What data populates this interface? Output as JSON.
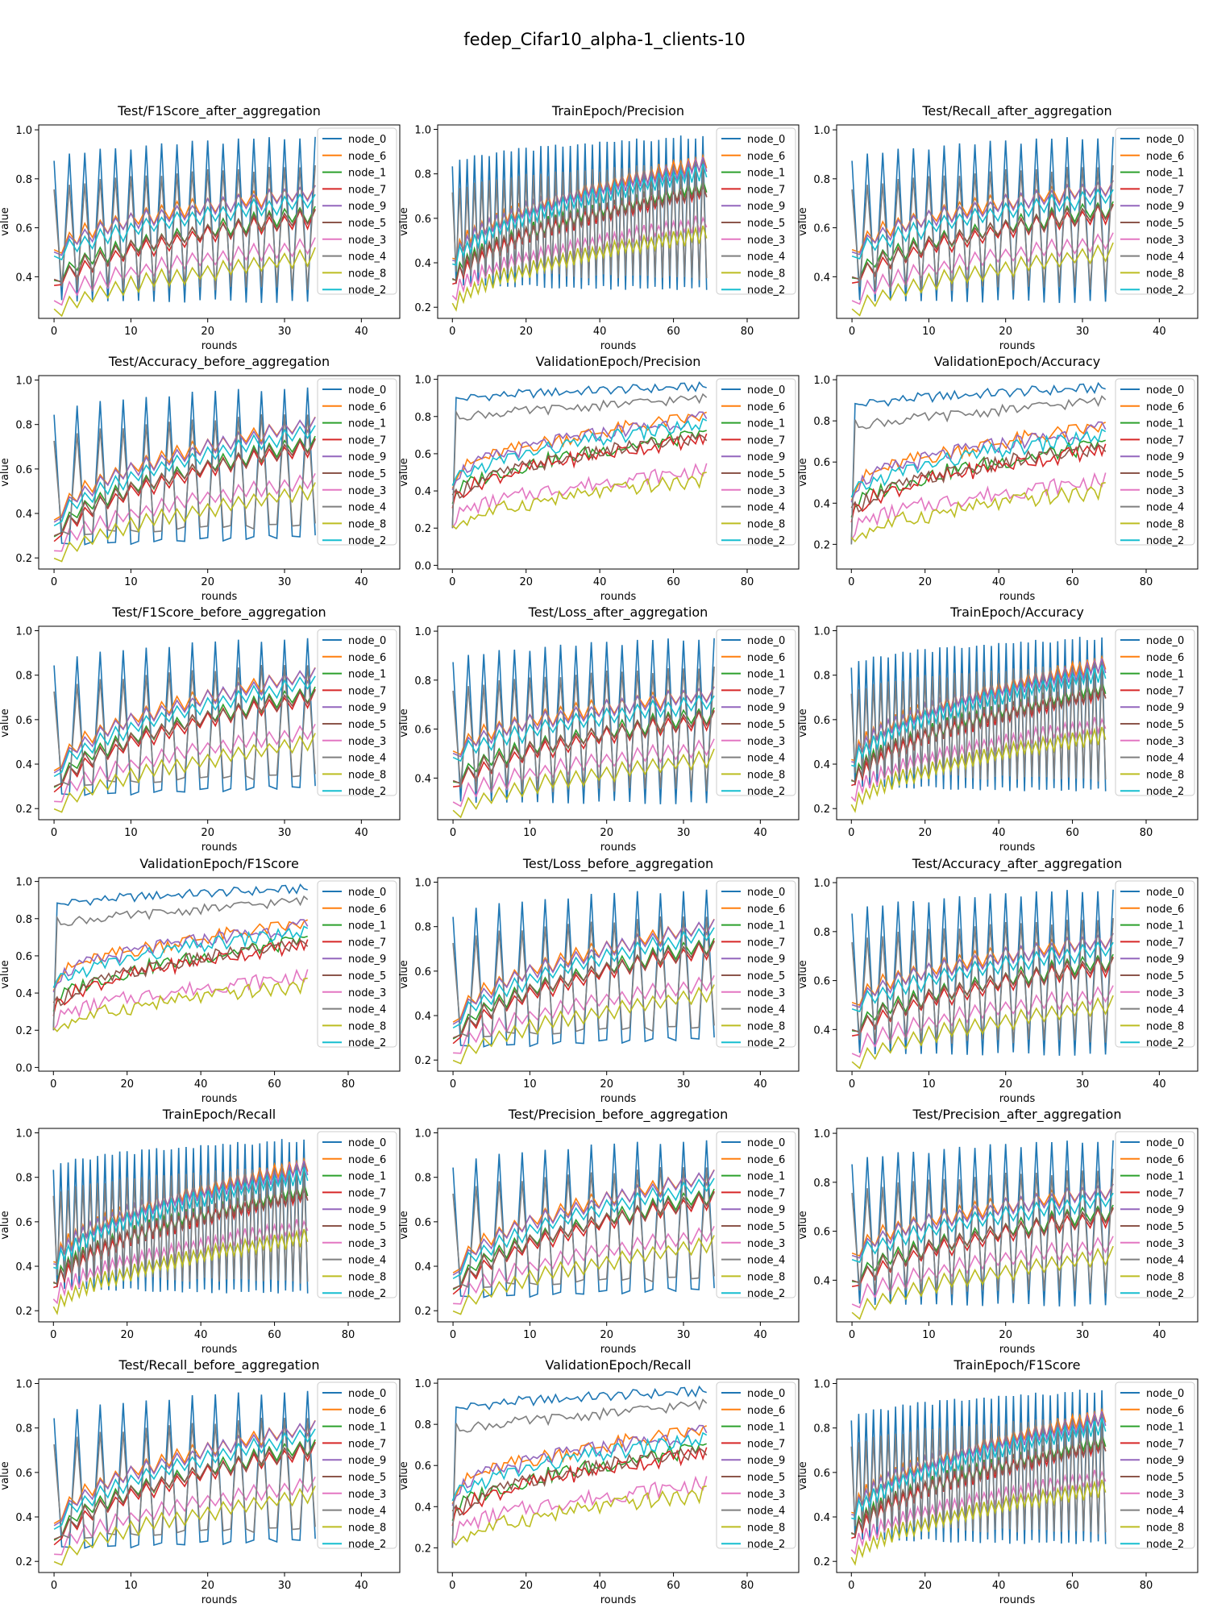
{
  "figure_title": "fedep_Cifar10_alpha-1_clients-10",
  "legend": [
    "node_0",
    "node_6",
    "node_1",
    "node_7",
    "node_9",
    "node_5",
    "node_3",
    "node_4",
    "node_8",
    "node_2"
  ],
  "colors": {
    "node_0": "#1f77b4",
    "node_6": "#ff7f0e",
    "node_1": "#2ca02c",
    "node_7": "#d62728",
    "node_9": "#9467bd",
    "node_5": "#8c564b",
    "node_3": "#e377c2",
    "node_4": "#7f7f7f",
    "node_8": "#bcbd22",
    "node_2": "#17becf"
  },
  "chart_data": [
    {
      "type": "line",
      "title": "Test/F1Score_after_aggregation",
      "xlabel": "rounds",
      "ylabel": "value",
      "xlim": [
        -2,
        45
      ],
      "ylim": [
        0.23,
        1.02
      ],
      "xticks": [
        0,
        10,
        20,
        30,
        40
      ],
      "yticks": [
        0.4,
        0.6,
        0.8,
        1.0
      ],
      "n": 35,
      "pattern": "saw2",
      "start": {
        "hi": 0.88,
        "lo": 0.3
      },
      "end": {
        "hi": 0.97,
        "lo": 0.3
      },
      "groups": {
        "b": [
          0.44,
          0.7
        ],
        "m": [
          0.36,
          0.66
        ],
        "l": [
          0.25,
          0.5
        ]
      }
    },
    {
      "type": "line",
      "title": "TrainEpoch/Precision",
      "xlabel": "rounds",
      "ylabel": "value",
      "xlim": [
        -4,
        94
      ],
      "ylim": [
        0.15,
        1.02
      ],
      "xticks": [
        0,
        20,
        40,
        60,
        80
      ],
      "yticks": [
        0.2,
        0.4,
        0.6,
        0.8,
        1.0
      ],
      "n": 70,
      "pattern": "saw2",
      "start": {
        "hi": 0.84,
        "lo": 0.3
      },
      "end": {
        "hi": 0.97,
        "lo": 0.28
      },
      "groups": {
        "b": [
          0.35,
          0.8
        ],
        "m": [
          0.3,
          0.74
        ],
        "l": [
          0.2,
          0.55
        ]
      }
    },
    {
      "type": "line",
      "title": "Test/Recall_after_aggregation",
      "xlabel": "rounds",
      "ylabel": "value",
      "xlim": [
        -2,
        45
      ],
      "ylim": [
        0.23,
        1.02
      ],
      "xticks": [
        0,
        10,
        20,
        30,
        40
      ],
      "yticks": [
        0.4,
        0.6,
        0.8,
        1.0
      ],
      "n": 35,
      "pattern": "saw2",
      "start": {
        "hi": 0.88,
        "lo": 0.3
      },
      "end": {
        "hi": 0.97,
        "lo": 0.3
      },
      "groups": {
        "b": [
          0.44,
          0.72
        ],
        "m": [
          0.37,
          0.68
        ],
        "l": [
          0.25,
          0.52
        ]
      }
    },
    {
      "type": "line",
      "title": "Test/Accuracy_before_aggregation",
      "xlabel": "rounds",
      "ylabel": "value",
      "xlim": [
        -2,
        45
      ],
      "ylim": [
        0.15,
        1.02
      ],
      "xticks": [
        0,
        10,
        20,
        30,
        40
      ],
      "yticks": [
        0.2,
        0.4,
        0.6,
        0.8,
        1.0
      ],
      "n": 35,
      "pattern": "saw3",
      "start": {
        "hi": 0.85,
        "lo": 0.26
      },
      "end": {
        "hi": 0.97,
        "lo": 0.3
      },
      "groups": {
        "b": [
          0.3,
          0.76
        ],
        "m": [
          0.27,
          0.72
        ],
        "l": [
          0.18,
          0.52
        ]
      }
    },
    {
      "type": "line",
      "title": "ValidationEpoch/Precision",
      "xlabel": "rounds",
      "ylabel": "value",
      "xlim": [
        -4,
        94
      ],
      "ylim": [
        -0.02,
        1.02
      ],
      "xticks": [
        0,
        20,
        40,
        60,
        80
      ],
      "yticks": [
        0.0,
        0.2,
        0.4,
        0.6,
        0.8,
        1.0
      ],
      "n": 70,
      "pattern": "noisy",
      "start": {
        "hi": 0.88,
        "lo": 0.8
      },
      "end": {
        "hi": 0.96,
        "lo": 0.9
      },
      "groups": {
        "b": [
          0.4,
          0.75
        ],
        "m": [
          0.35,
          0.7
        ],
        "l": [
          0.2,
          0.48
        ]
      }
    },
    {
      "type": "line",
      "title": "ValidationEpoch/Accuracy",
      "xlabel": "rounds",
      "ylabel": "value",
      "xlim": [
        -4,
        94
      ],
      "ylim": [
        0.08,
        1.02
      ],
      "xticks": [
        0,
        20,
        40,
        60,
        80
      ],
      "yticks": [
        0.2,
        0.4,
        0.6,
        0.8,
        1.0
      ],
      "n": 70,
      "pattern": "noisy",
      "start": {
        "hi": 0.86,
        "lo": 0.78
      },
      "end": {
        "hi": 0.96,
        "lo": 0.9
      },
      "groups": {
        "b": [
          0.4,
          0.72
        ],
        "m": [
          0.35,
          0.68
        ],
        "l": [
          0.22,
          0.48
        ]
      }
    },
    {
      "type": "line",
      "title": "Test/F1Score_before_aggregation",
      "xlabel": "rounds",
      "ylabel": "value",
      "xlim": [
        -2,
        45
      ],
      "ylim": [
        0.15,
        1.02
      ],
      "xticks": [
        0,
        10,
        20,
        30,
        40
      ],
      "yticks": [
        0.2,
        0.4,
        0.6,
        0.8,
        1.0
      ],
      "n": 35,
      "pattern": "saw3",
      "start": {
        "hi": 0.85,
        "lo": 0.26
      },
      "end": {
        "hi": 0.97,
        "lo": 0.3
      },
      "groups": {
        "b": [
          0.3,
          0.76
        ],
        "m": [
          0.27,
          0.72
        ],
        "l": [
          0.18,
          0.52
        ]
      }
    },
    {
      "type": "line",
      "title": "Test/Loss_after_aggregation",
      "xlabel": "rounds",
      "ylabel": "value",
      "xlim": [
        -2,
        45
      ],
      "ylim": [
        0.23,
        1.02
      ],
      "xticks": [
        0,
        10,
        20,
        30,
        40
      ],
      "yticks": [
        0.4,
        0.6,
        0.8,
        1.0
      ],
      "n": 35,
      "pattern": "saw2",
      "start": {
        "hi": 0.88,
        "lo": 0.3
      },
      "end": {
        "hi": 0.97,
        "lo": 0.3
      },
      "groups": {
        "b": [
          0.44,
          0.7
        ],
        "m": [
          0.36,
          0.66
        ],
        "l": [
          0.25,
          0.5
        ]
      }
    },
    {
      "type": "line",
      "title": "TrainEpoch/Accuracy",
      "xlabel": "rounds",
      "ylabel": "value",
      "xlim": [
        -4,
        94
      ],
      "ylim": [
        0.15,
        1.02
      ],
      "xticks": [
        0,
        20,
        40,
        60,
        80
      ],
      "yticks": [
        0.2,
        0.4,
        0.6,
        0.8,
        1.0
      ],
      "n": 70,
      "pattern": "saw2",
      "start": {
        "hi": 0.84,
        "lo": 0.3
      },
      "end": {
        "hi": 0.97,
        "lo": 0.28
      },
      "groups": {
        "b": [
          0.35,
          0.8
        ],
        "m": [
          0.3,
          0.74
        ],
        "l": [
          0.2,
          0.55
        ]
      }
    },
    {
      "type": "line",
      "title": "ValidationEpoch/F1Score",
      "xlabel": "rounds",
      "ylabel": "value",
      "xlim": [
        -4,
        94
      ],
      "ylim": [
        -0.02,
        1.02
      ],
      "xticks": [
        0,
        20,
        40,
        60,
        80
      ],
      "yticks": [
        0.0,
        0.2,
        0.4,
        0.6,
        0.8,
        1.0
      ],
      "n": 70,
      "pattern": "noisy",
      "start": {
        "hi": 0.86,
        "lo": 0.78
      },
      "end": {
        "hi": 0.96,
        "lo": 0.9
      },
      "groups": {
        "b": [
          0.4,
          0.72
        ],
        "m": [
          0.32,
          0.68
        ],
        "l": [
          0.2,
          0.46
        ]
      }
    },
    {
      "type": "line",
      "title": "Test/Loss_before_aggregation",
      "xlabel": "rounds",
      "ylabel": "value",
      "xlim": [
        -2,
        45
      ],
      "ylim": [
        0.15,
        1.02
      ],
      "xticks": [
        0,
        10,
        20,
        30,
        40
      ],
      "yticks": [
        0.2,
        0.4,
        0.6,
        0.8,
        1.0
      ],
      "n": 35,
      "pattern": "saw3",
      "start": {
        "hi": 0.85,
        "lo": 0.26
      },
      "end": {
        "hi": 0.97,
        "lo": 0.3
      },
      "groups": {
        "b": [
          0.3,
          0.76
        ],
        "m": [
          0.27,
          0.72
        ],
        "l": [
          0.18,
          0.52
        ]
      }
    },
    {
      "type": "line",
      "title": "Test/Accuracy_after_aggregation",
      "xlabel": "rounds",
      "ylabel": "value",
      "xlim": [
        -2,
        45
      ],
      "ylim": [
        0.23,
        1.02
      ],
      "xticks": [
        0,
        10,
        20,
        30,
        40
      ],
      "yticks": [
        0.4,
        0.6,
        0.8,
        1.0
      ],
      "n": 35,
      "pattern": "saw2",
      "start": {
        "hi": 0.88,
        "lo": 0.3
      },
      "end": {
        "hi": 0.97,
        "lo": 0.3
      },
      "groups": {
        "b": [
          0.44,
          0.72
        ],
        "m": [
          0.37,
          0.68
        ],
        "l": [
          0.25,
          0.52
        ]
      }
    },
    {
      "type": "line",
      "title": "TrainEpoch/Recall",
      "xlabel": "rounds",
      "ylabel": "value",
      "xlim": [
        -4,
        94
      ],
      "ylim": [
        0.15,
        1.02
      ],
      "xticks": [
        0,
        20,
        40,
        60,
        80
      ],
      "yticks": [
        0.2,
        0.4,
        0.6,
        0.8,
        1.0
      ],
      "n": 70,
      "pattern": "saw2",
      "start": {
        "hi": 0.84,
        "lo": 0.3
      },
      "end": {
        "hi": 0.97,
        "lo": 0.28
      },
      "groups": {
        "b": [
          0.35,
          0.8
        ],
        "m": [
          0.3,
          0.74
        ],
        "l": [
          0.2,
          0.55
        ]
      }
    },
    {
      "type": "line",
      "title": "Test/Precision_before_aggregation",
      "xlabel": "rounds",
      "ylabel": "value",
      "xlim": [
        -2,
        45
      ],
      "ylim": [
        0.15,
        1.02
      ],
      "xticks": [
        0,
        10,
        20,
        30,
        40
      ],
      "yticks": [
        0.2,
        0.4,
        0.6,
        0.8,
        1.0
      ],
      "n": 35,
      "pattern": "saw3",
      "start": {
        "hi": 0.85,
        "lo": 0.26
      },
      "end": {
        "hi": 0.97,
        "lo": 0.3
      },
      "groups": {
        "b": [
          0.3,
          0.76
        ],
        "m": [
          0.27,
          0.72
        ],
        "l": [
          0.18,
          0.52
        ]
      }
    },
    {
      "type": "line",
      "title": "Test/Precision_after_aggregation",
      "xlabel": "rounds",
      "ylabel": "value",
      "xlim": [
        -2,
        45
      ],
      "ylim": [
        0.23,
        1.02
      ],
      "xticks": [
        0,
        10,
        20,
        30,
        40
      ],
      "yticks": [
        0.4,
        0.6,
        0.8,
        1.0
      ],
      "n": 35,
      "pattern": "saw2",
      "start": {
        "hi": 0.88,
        "lo": 0.3
      },
      "end": {
        "hi": 0.97,
        "lo": 0.3
      },
      "groups": {
        "b": [
          0.44,
          0.72
        ],
        "m": [
          0.37,
          0.68
        ],
        "l": [
          0.25,
          0.52
        ]
      }
    },
    {
      "type": "line",
      "title": "Test/Recall_before_aggregation",
      "xlabel": "rounds",
      "ylabel": "value",
      "xlim": [
        -2,
        45
      ],
      "ylim": [
        0.15,
        1.02
      ],
      "xticks": [
        0,
        10,
        20,
        30,
        40
      ],
      "yticks": [
        0.2,
        0.4,
        0.6,
        0.8,
        1.0
      ],
      "n": 35,
      "pattern": "saw3",
      "start": {
        "hi": 0.85,
        "lo": 0.26
      },
      "end": {
        "hi": 0.97,
        "lo": 0.3
      },
      "groups": {
        "b": [
          0.3,
          0.76
        ],
        "m": [
          0.27,
          0.72
        ],
        "l": [
          0.18,
          0.52
        ]
      }
    },
    {
      "type": "line",
      "title": "ValidationEpoch/Recall",
      "xlabel": "rounds",
      "ylabel": "value",
      "xlim": [
        -4,
        94
      ],
      "ylim": [
        0.08,
        1.02
      ],
      "xticks": [
        0,
        20,
        40,
        60,
        80
      ],
      "yticks": [
        0.2,
        0.4,
        0.6,
        0.8,
        1.0
      ],
      "n": 70,
      "pattern": "noisy",
      "start": {
        "hi": 0.86,
        "lo": 0.78
      },
      "end": {
        "hi": 0.96,
        "lo": 0.9
      },
      "groups": {
        "b": [
          0.4,
          0.72
        ],
        "m": [
          0.35,
          0.68
        ],
        "l": [
          0.22,
          0.48
        ]
      }
    },
    {
      "type": "line",
      "title": "TrainEpoch/F1Score",
      "xlabel": "rounds",
      "ylabel": "value",
      "xlim": [
        -4,
        94
      ],
      "ylim": [
        0.15,
        1.02
      ],
      "xticks": [
        0,
        20,
        40,
        60,
        80
      ],
      "yticks": [
        0.2,
        0.4,
        0.6,
        0.8,
        1.0
      ],
      "n": 70,
      "pattern": "saw2",
      "start": {
        "hi": 0.84,
        "lo": 0.3
      },
      "end": {
        "hi": 0.97,
        "lo": 0.28
      },
      "groups": {
        "b": [
          0.35,
          0.8
        ],
        "m": [
          0.3,
          0.74
        ],
        "l": [
          0.2,
          0.55
        ]
      }
    }
  ]
}
